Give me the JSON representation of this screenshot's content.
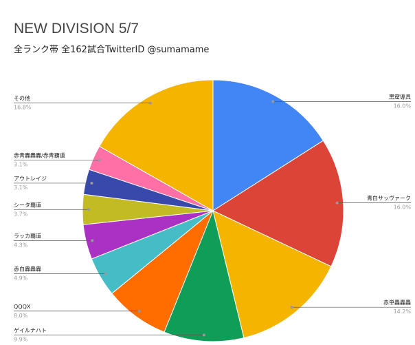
{
  "chart_data": {
    "type": "pie",
    "title": "NEW DIVISION 5/7",
    "subtitle": "全ランク帯 全162試合TwitterID @sumamame",
    "categories": [
      "黒窟導具",
      "青白サッヴァーク",
      "赤単轟轟轟",
      "ゲイルナハト",
      "QQQX",
      "赤白轟轟轟",
      "ラッカ覇道",
      "シータ覇道",
      "アウトレイジ",
      "赤青轟轟轟/赤青覇道",
      "その他"
    ],
    "values": [
      16.0,
      16.0,
      14.2,
      9.9,
      8.0,
      4.9,
      4.3,
      3.7,
      3.1,
      3.1,
      16.8
    ],
    "value_labels": [
      "16.0%",
      "16.0%",
      "14.2%",
      "9.9%",
      "8.0%",
      "4.9%",
      "4.3%",
      "3.7%",
      "3.1%",
      "3.1%",
      "16.8%"
    ],
    "colors": [
      "#4285f4",
      "#db4437",
      "#f4b400",
      "#0f9d58",
      "#ff6d00",
      "#46bdc6",
      "#ab30c4",
      "#c2bb24",
      "#3949ab",
      "#ff70a6",
      "#f4b400"
    ]
  }
}
